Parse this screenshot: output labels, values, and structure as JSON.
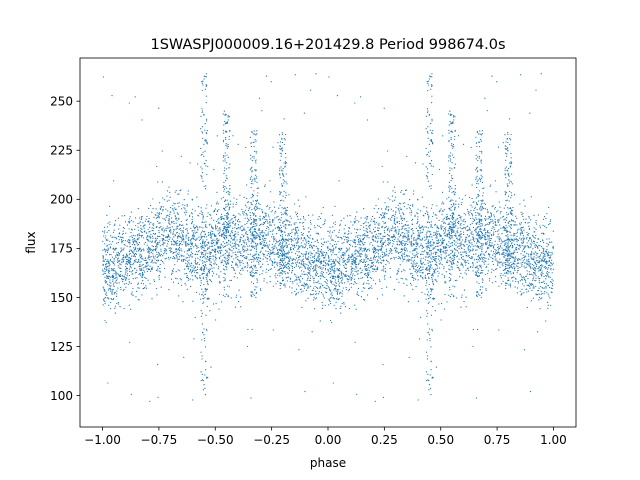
{
  "chart_data": {
    "type": "scatter",
    "title": "1SWASPJ000009.16+201429.8 Period 998674.0s",
    "xlabel": "phase",
    "ylabel": "flux",
    "xlim": [
      -1.1,
      1.1
    ],
    "ylim": [
      84,
      272
    ],
    "x_ticks": [
      -1.0,
      -0.75,
      -0.5,
      -0.25,
      0.0,
      0.25,
      0.5,
      0.75,
      1.0
    ],
    "x_tick_labels": [
      "−1.00",
      "−0.75",
      "−0.50",
      "−0.25",
      "0.00",
      "0.25",
      "0.50",
      "0.75",
      "1.00"
    ],
    "y_ticks": [
      100,
      125,
      150,
      175,
      200,
      225,
      250
    ],
    "y_tick_labels": [
      "100",
      "125",
      "150",
      "175",
      "200",
      "225",
      "250"
    ],
    "grid": false,
    "marker_color": "#1f77b4",
    "series": [
      {
        "phase_range": [
          -1.0,
          1.0
        ],
        "folded_twice": true,
        "point_count_per_cycle": 3000,
        "band_center": 173,
        "band_spread": [
          150,
          200
        ],
        "bin_medians": {
          "phase": [
            0.0,
            0.05,
            0.1,
            0.15,
            0.2,
            0.25,
            0.3,
            0.35,
            0.4,
            0.45,
            0.5,
            0.55,
            0.6,
            0.65,
            0.7,
            0.75,
            0.8,
            0.85,
            0.9,
            0.95,
            1.0
          ],
          "flux": [
            168,
            165,
            170,
            172,
            175,
            178,
            182,
            180,
            176,
            170,
            178,
            182,
            176,
            180,
            182,
            178,
            176,
            174,
            170,
            168,
            168
          ]
        },
        "outlier_features": [
          {
            "phase": -0.55,
            "flux_min": 100,
            "flux_max": 265
          },
          {
            "phase": 0.45,
            "flux_min": 100,
            "flux_max": 265
          },
          {
            "phase": -0.45,
            "flux_min": 150,
            "flux_max": 245
          },
          {
            "phase": 0.55,
            "flux_min": 150,
            "flux_max": 245
          },
          {
            "phase": -0.33,
            "flux_min": 150,
            "flux_max": 235
          },
          {
            "phase": 0.67,
            "flux_min": 150,
            "flux_max": 235
          },
          {
            "phase": -0.2,
            "flux_min": 155,
            "flux_max": 235
          },
          {
            "phase": 0.8,
            "flux_min": 155,
            "flux_max": 235
          }
        ]
      }
    ]
  }
}
